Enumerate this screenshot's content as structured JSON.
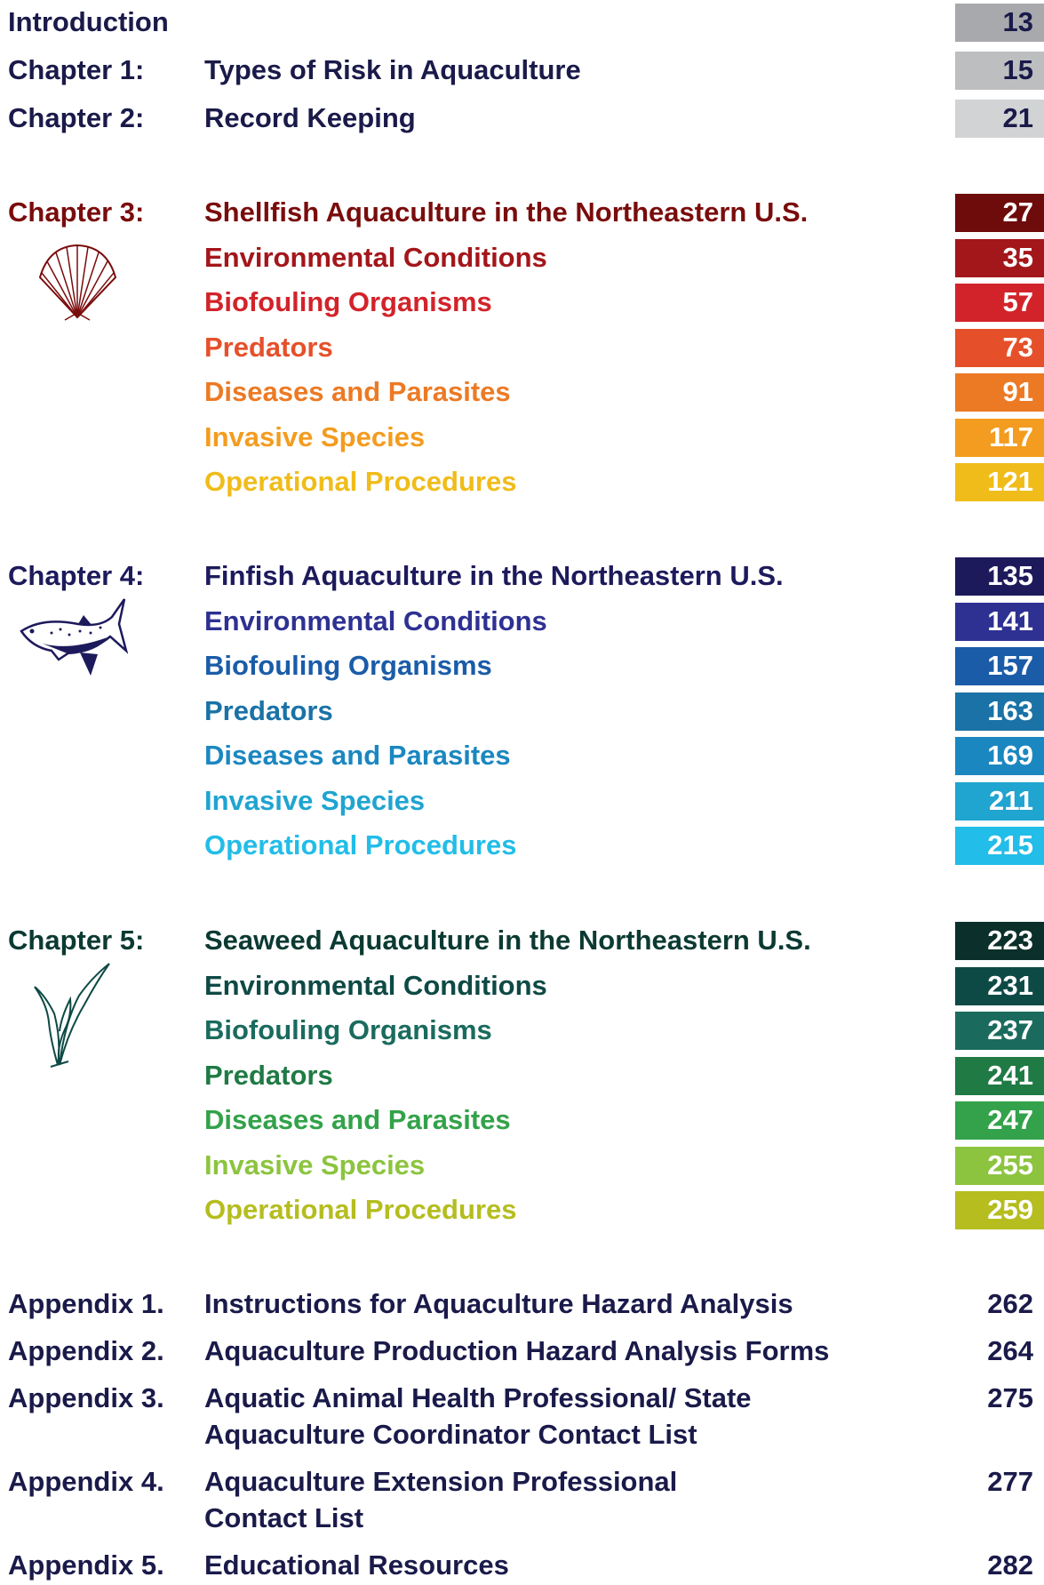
{
  "groups": [
    {
      "number_color": "#ffffff",
      "rows": [
        {
          "label": "Introduction",
          "page": "13",
          "color": "#1a1a4a",
          "box_color": "#a7a9ac",
          "number_color": "#1a1a4a"
        },
        {
          "label": "Chapter 1:",
          "title": "Types of Risk in Aquaculture",
          "page": "15",
          "color": "#1a1a4a",
          "box_color": "#bcbec0",
          "number_color": "#1a1a4a"
        },
        {
          "label": "Chapter 2:",
          "title": "Record Keeping",
          "page": "21",
          "color": "#1a1a4a",
          "box_color": "#d1d3d4",
          "number_color": "#1a1a4a"
        }
      ]
    },
    {
      "number_color": "#ffffff",
      "rows": [
        {
          "label": "Chapter 3:",
          "title": "Shellfish Aquaculture in the Northeastern U.S.",
          "page": "27",
          "color": "#7a0c0c",
          "box_color": "#6e0b0b"
        },
        {
          "title": "Environmental Conditions",
          "page": "35",
          "color": "#a3161a",
          "box_color": "#a3161a"
        },
        {
          "title": "Biofouling Organisms",
          "page": "57",
          "color": "#d2232a",
          "box_color": "#d2232a"
        },
        {
          "title": "Predators",
          "page": "73",
          "color": "#e5502a",
          "box_color": "#e5502a"
        },
        {
          "title": "Diseases and Parasites",
          "page": "91",
          "color": "#ec7a24",
          "box_color": "#ec7a24"
        },
        {
          "title": "Invasive Species",
          "page": "117",
          "color": "#f39c1f",
          "box_color": "#f39c1f"
        },
        {
          "title": "Operational Procedures",
          "page": "121",
          "color": "#f0bc1a",
          "box_color": "#f0bc1a"
        }
      ]
    },
    {
      "number_color": "#ffffff",
      "rows": [
        {
          "label": "Chapter 4:",
          "title": "Finfish Aquaculture in the Northeastern U.S.",
          "page": "135",
          "color": "#1d1a5c",
          "box_color": "#1d1a5c"
        },
        {
          "title": "Environmental Conditions",
          "page": "141",
          "color": "#2e3192",
          "box_color": "#2e3192"
        },
        {
          "title": "Biofouling Organisms",
          "page": "157",
          "color": "#1a5ca8",
          "box_color": "#1a5ca8"
        },
        {
          "title": "Predators",
          "page": "163",
          "color": "#1a72a6",
          "box_color": "#1a72a6"
        },
        {
          "title": "Diseases and Parasites",
          "page": "169",
          "color": "#1b87c0",
          "box_color": "#1b87c0"
        },
        {
          "title": "Invasive Species",
          "page": "211",
          "color": "#20a4d0",
          "box_color": "#20a4d0"
        },
        {
          "title": "Operational Procedures",
          "page": "215",
          "color": "#22bde8",
          "box_color": "#22bde8"
        }
      ]
    },
    {
      "number_color": "#ffffff",
      "rows": [
        {
          "label": "Chapter 5:",
          "title": "Seaweed Aquaculture in the Northeastern U.S.",
          "page": "223",
          "color": "#0b3a32",
          "box_color": "#0b2f2a"
        },
        {
          "title": "Environmental Conditions",
          "page": "231",
          "color": "#0e4a45",
          "box_color": "#0e4a45"
        },
        {
          "title": "Biofouling Organisms",
          "page": "237",
          "color": "#1a6b5e",
          "box_color": "#1a6b5e"
        },
        {
          "title": "Predators",
          "page": "241",
          "color": "#1f7a44",
          "box_color": "#1f7a44"
        },
        {
          "title": "Diseases and Parasites",
          "page": "247",
          "color": "#33a24a",
          "box_color": "#33a24a"
        },
        {
          "title": "Invasive Species",
          "page": "255",
          "color": "#8cc43f",
          "box_color": "#8cc43f"
        },
        {
          "title": "Operational Procedures",
          "page": "259",
          "color": "#b5bd1f",
          "box_color": "#b5bd1f"
        }
      ]
    },
    {
      "number_color": "#1a1a4a",
      "rows": [
        {
          "label": "Appendix 1.",
          "title_lines": [
            "Instructions for Aquaculture Hazard Analysis"
          ],
          "page": "262",
          "color": "#1a1a4a"
        },
        {
          "label": "Appendix 2.",
          "title_lines": [
            "Aquaculture Production Hazard Analysis Forms"
          ],
          "page": "264",
          "color": "#1a1a4a"
        },
        {
          "label": "Appendix 3.",
          "title_lines": [
            "Aquatic Animal Health Professional/ State",
            "Aquaculture Coordinator Contact List"
          ],
          "page": "275",
          "color": "#1a1a4a"
        },
        {
          "label": "Appendix 4.",
          "title_lines": [
            "Aquaculture Extension Professional",
            "Contact List"
          ],
          "page": "277",
          "color": "#1a1a4a"
        },
        {
          "label": "Appendix 5.",
          "title_lines": [
            "Educational Resources"
          ],
          "page": "282",
          "color": "#1a1a4a"
        }
      ]
    }
  ]
}
